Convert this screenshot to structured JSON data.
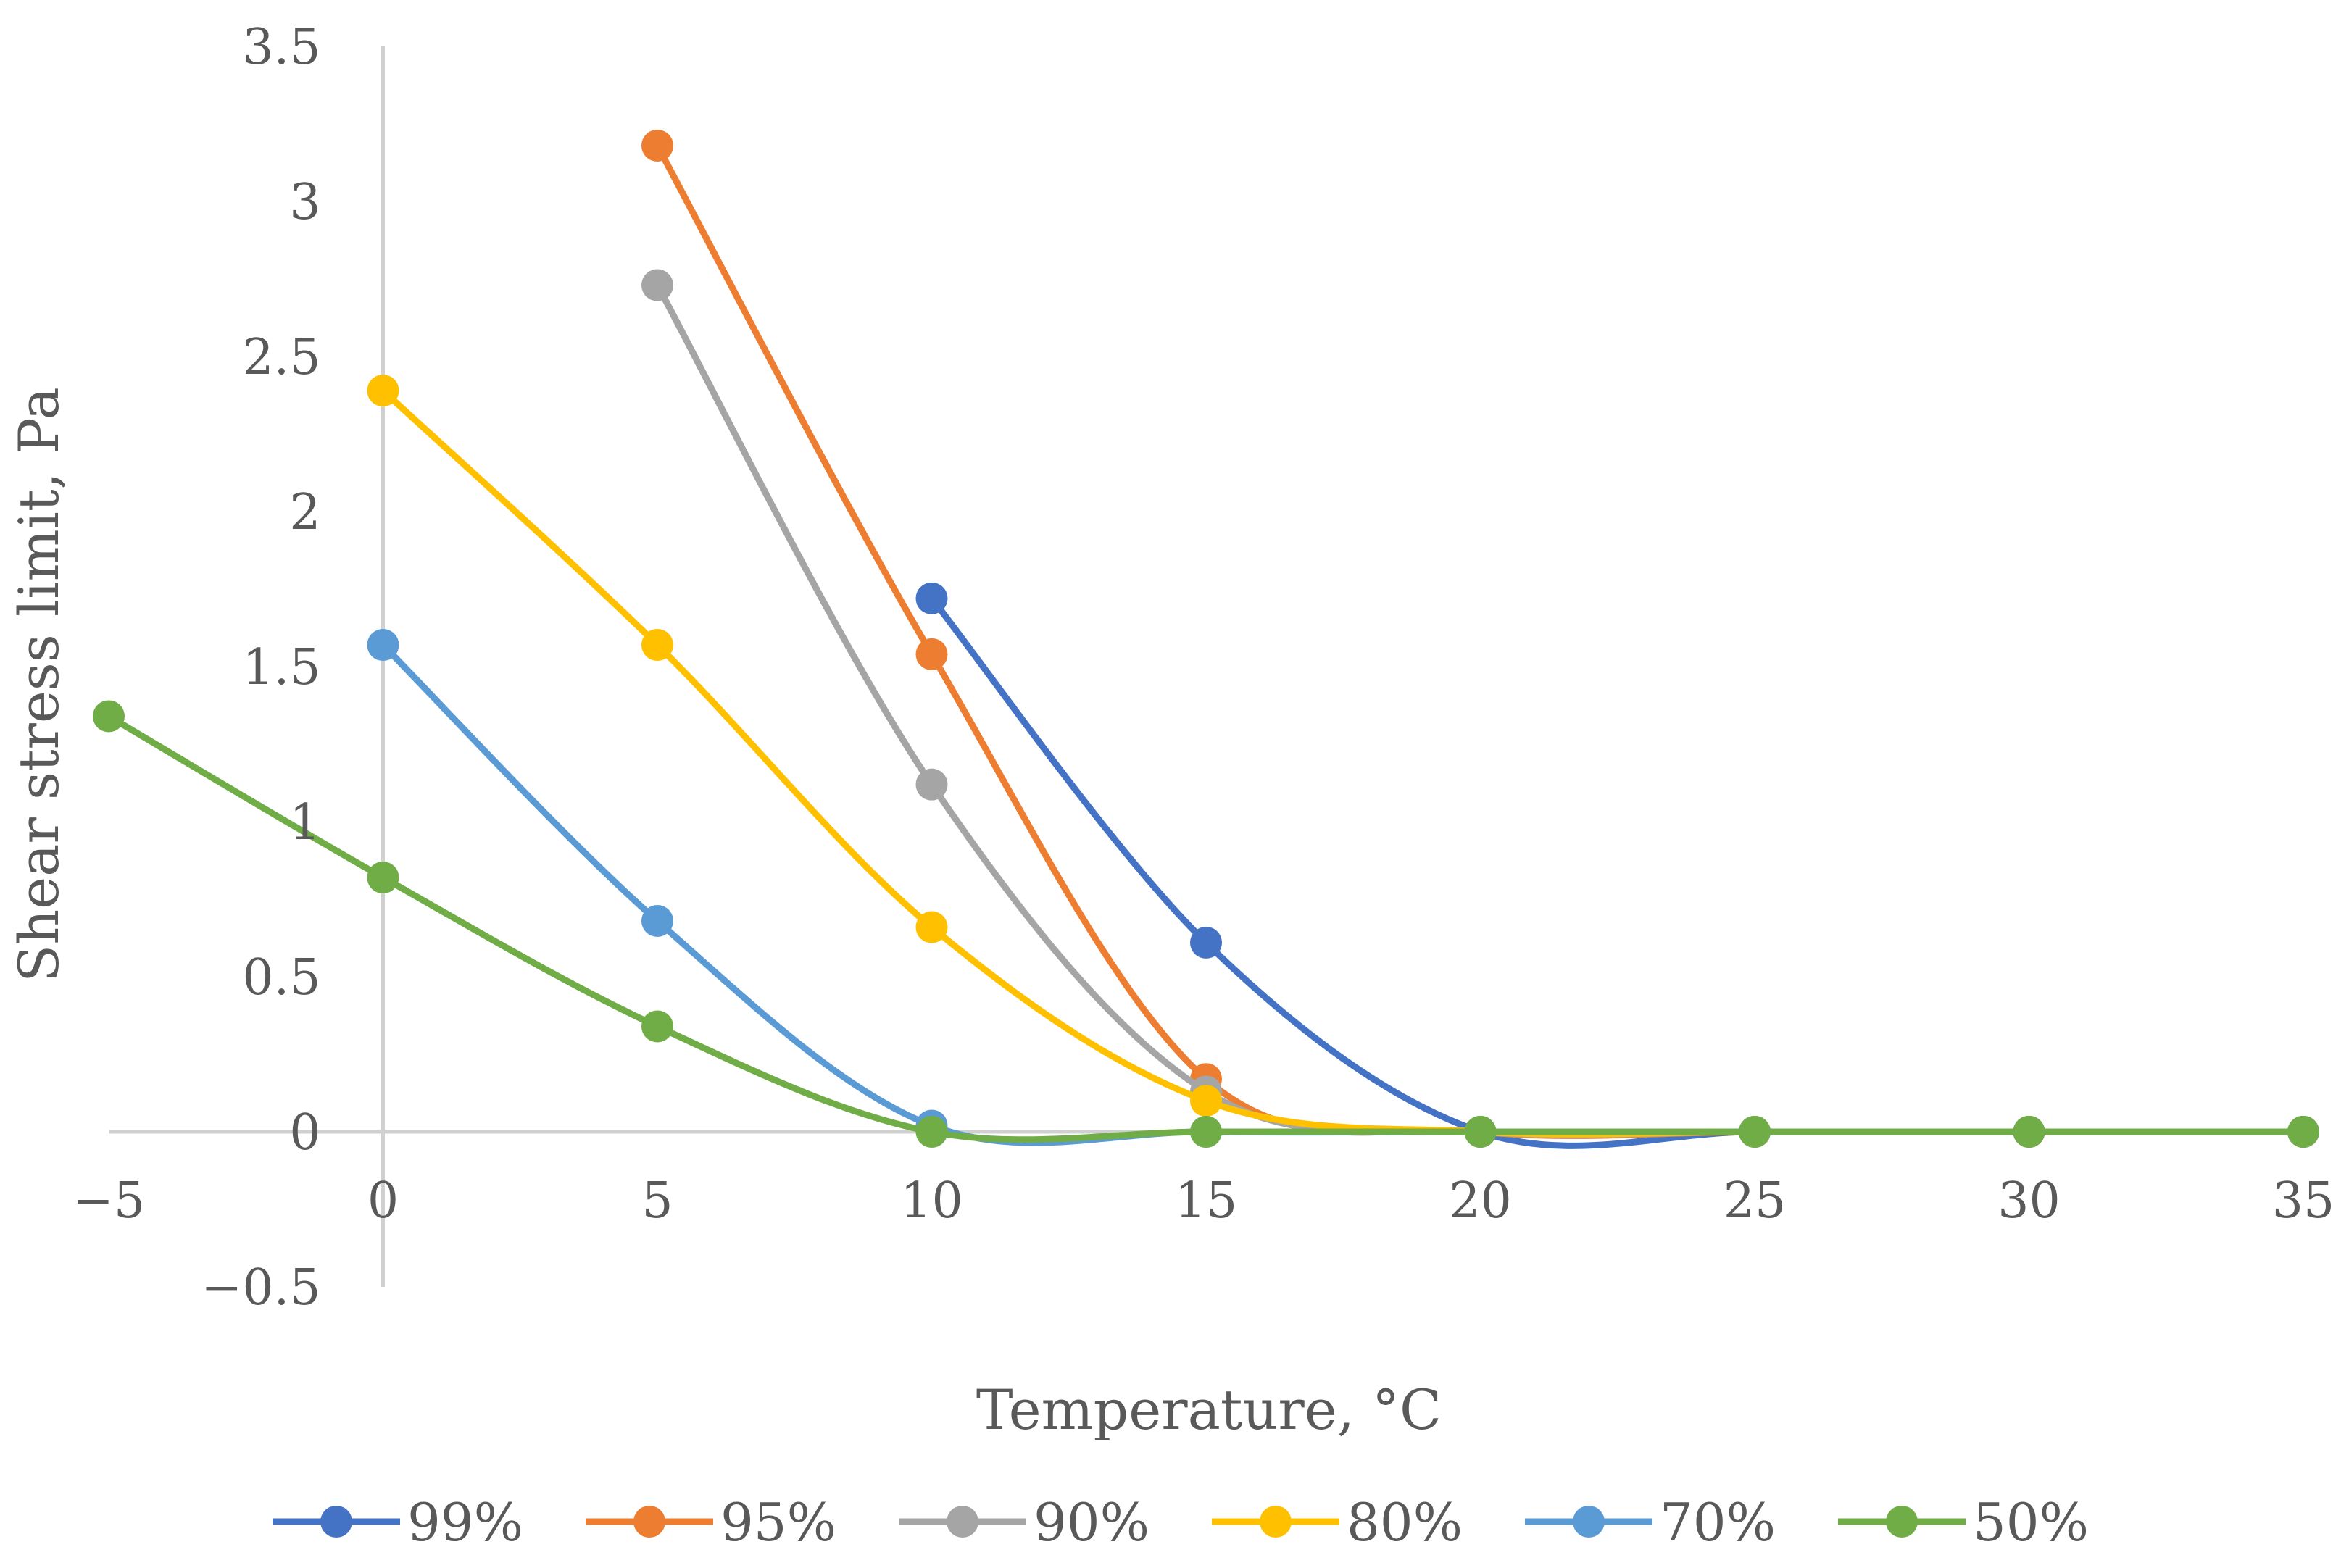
{
  "chart_data": {
    "type": "line",
    "title": "",
    "xlabel": "Temperature, °C",
    "ylabel": "Shear stress limit, Pa",
    "xlim": [
      -5,
      35
    ],
    "ylim": [
      -0.5,
      3.5
    ],
    "x_ticks": [
      -5,
      0,
      5,
      10,
      15,
      20,
      25,
      30,
      35
    ],
    "x_tick_labels": [
      "−5",
      "0",
      "5",
      "10",
      "15",
      "20",
      "25",
      "30",
      "35"
    ],
    "y_ticks": [
      -0.5,
      0,
      0.5,
      1,
      1.5,
      2,
      2.5,
      3,
      3.5
    ],
    "y_tick_labels": [
      "−0.5",
      "0",
      "0.5",
      "1",
      "1.5",
      "2",
      "2.5",
      "3",
      "3.5"
    ],
    "grid": false,
    "legend_position": "bottom",
    "smooth": true,
    "series": [
      {
        "name": "99%",
        "color": "#4472C4",
        "x": [
          10,
          15,
          20,
          25,
          30,
          35
        ],
        "y": [
          1.72,
          0.61,
          0,
          0,
          0,
          0
        ]
      },
      {
        "name": "95%",
        "color": "#ED7D31",
        "x": [
          5,
          10,
          15,
          20,
          25,
          30,
          35
        ],
        "y": [
          3.18,
          1.54,
          0.17,
          0,
          0,
          0,
          0
        ]
      },
      {
        "name": "90%",
        "color": "#A5A5A5",
        "x": [
          5,
          10,
          15,
          20,
          25,
          30,
          35
        ],
        "y": [
          2.73,
          1.12,
          0.13,
          0,
          0,
          0,
          0
        ]
      },
      {
        "name": "80%",
        "color": "#FFC000",
        "x": [
          0,
          5,
          10,
          15,
          20,
          25,
          30,
          35
        ],
        "y": [
          2.39,
          1.57,
          0.66,
          0.1,
          0,
          0,
          0,
          0
        ]
      },
      {
        "name": "70%",
        "color": "#5B9BD5",
        "x": [
          0,
          5,
          10,
          15,
          20,
          25,
          30,
          35
        ],
        "y": [
          1.57,
          0.68,
          0.02,
          0,
          0,
          0,
          0,
          0
        ]
      },
      {
        "name": "50%",
        "color": "#70AD47",
        "x": [
          -5,
          0,
          5,
          10,
          15,
          20,
          25,
          30,
          35
        ],
        "y": [
          1.34,
          0.82,
          0.34,
          0,
          0,
          0,
          0,
          0,
          0
        ]
      }
    ]
  }
}
